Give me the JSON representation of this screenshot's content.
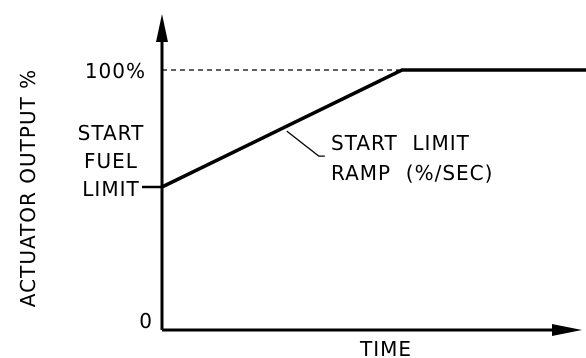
{
  "chart_data": {
    "type": "line",
    "title": "",
    "xlabel": "TIME",
    "ylabel": "ACTUATOR OUTPUT %",
    "ylim": [
      0,
      100
    ],
    "y_ticks": [
      {
        "value": 0,
        "label": "0"
      },
      {
        "value": 100,
        "label": "100%"
      }
    ],
    "series": [
      {
        "points": [
          {
            "x": 0,
            "y": 55
          },
          {
            "x": 2.4,
            "y": 100
          },
          {
            "x": 4.3,
            "y": 100
          }
        ]
      }
    ],
    "reference_lines": [
      {
        "orientation": "horizontal",
        "y": 100,
        "style": "dashed"
      }
    ],
    "annotations": {
      "start_fuel_limit": [
        "START",
        "FUEL",
        "LIMIT"
      ],
      "ramp": [
        "START  LIMIT",
        "RAMP  (%/SEC)"
      ]
    },
    "grid": false,
    "legend": "none"
  }
}
